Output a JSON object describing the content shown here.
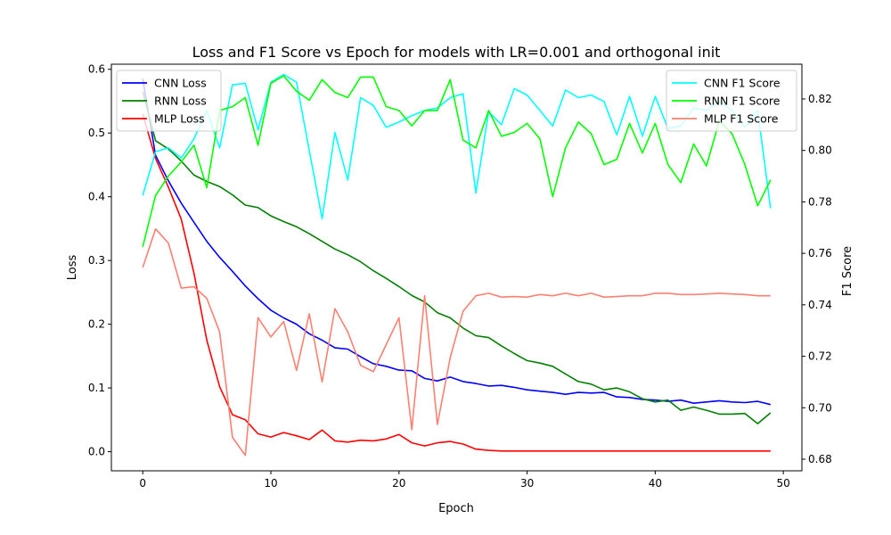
{
  "chart_data": {
    "type": "line",
    "title": "Loss and F1 Score vs Epoch for models with LR=0.001 and orthogonal init",
    "xlabel": "Epoch",
    "ylabel_left": "Loss",
    "ylabel_right": "F1 Score",
    "xlim": [
      -2.45,
      51.45
    ],
    "ylim_left": [
      -0.03,
      0.608
    ],
    "ylim_right": [
      0.6755,
      0.8335
    ],
    "x_ticks": [
      0,
      10,
      20,
      30,
      40,
      50
    ],
    "y_left_ticks": [
      0.0,
      0.1,
      0.2,
      0.3,
      0.4,
      0.5,
      0.6
    ],
    "y_right_ticks": [
      0.68,
      0.7,
      0.72,
      0.74,
      0.76,
      0.78,
      0.8,
      0.82
    ],
    "grid": false,
    "legend_left": "top-left",
    "legend_right": "top-right",
    "x": [
      0,
      1,
      2,
      3,
      4,
      5,
      6,
      7,
      8,
      9,
      10,
      11,
      12,
      13,
      14,
      15,
      16,
      17,
      18,
      19,
      20,
      21,
      22,
      23,
      24,
      25,
      26,
      27,
      28,
      29,
      30,
      31,
      32,
      33,
      34,
      35,
      36,
      37,
      38,
      39,
      40,
      41,
      42,
      43,
      44,
      45,
      46,
      47,
      48,
      49
    ],
    "loss_series": [
      {
        "name": "CNN Loss",
        "color": "#0000ff",
        "values": [
          0.585,
          0.465,
          0.425,
          0.39,
          0.36,
          0.33,
          0.305,
          0.283,
          0.26,
          0.24,
          0.222,
          0.21,
          0.2,
          0.185,
          0.175,
          0.163,
          0.161,
          0.149,
          0.138,
          0.134,
          0.128,
          0.127,
          0.115,
          0.111,
          0.117,
          0.11,
          0.107,
          0.103,
          0.104,
          0.101,
          0.097,
          0.095,
          0.093,
          0.09,
          0.093,
          0.092,
          0.093,
          0.086,
          0.085,
          0.082,
          0.081,
          0.079,
          0.081,
          0.076,
          0.078,
          0.08,
          0.078,
          0.077,
          0.079,
          0.074
        ]
      },
      {
        "name": "RNN Loss",
        "color": "#008000",
        "values": [
          0.565,
          0.488,
          0.475,
          0.456,
          0.434,
          0.424,
          0.416,
          0.403,
          0.387,
          0.383,
          0.37,
          0.361,
          0.353,
          0.342,
          0.33,
          0.318,
          0.309,
          0.298,
          0.284,
          0.272,
          0.259,
          0.245,
          0.235,
          0.218,
          0.21,
          0.194,
          0.182,
          0.179,
          0.166,
          0.154,
          0.143,
          0.139,
          0.134,
          0.122,
          0.11,
          0.106,
          0.097,
          0.1,
          0.094,
          0.083,
          0.078,
          0.081,
          0.065,
          0.07,
          0.065,
          0.059,
          0.059,
          0.06,
          0.044,
          0.061
        ]
      },
      {
        "name": "MLP Loss",
        "color": "#ff0000",
        "values": [
          0.53,
          0.46,
          0.415,
          0.365,
          0.28,
          0.175,
          0.102,
          0.058,
          0.05,
          0.028,
          0.023,
          0.03,
          0.025,
          0.019,
          0.034,
          0.017,
          0.015,
          0.018,
          0.017,
          0.02,
          0.027,
          0.014,
          0.009,
          0.014,
          0.016,
          0.012,
          0.004,
          0.002,
          0.001,
          0.001,
          0.001,
          0.001,
          0.001,
          0.001,
          0.001,
          0.001,
          0.001,
          0.001,
          0.001,
          0.001,
          0.001,
          0.001,
          0.001,
          0.001,
          0.001,
          0.001,
          0.001,
          0.001,
          0.001,
          0.001
        ]
      }
    ],
    "f1_series": [
      {
        "name": "CNN F1 Score",
        "color": "#00ffff",
        "values": [
          0.7825,
          0.7995,
          0.801,
          0.797,
          0.8045,
          0.8155,
          0.801,
          0.8255,
          0.826,
          0.808,
          0.8265,
          0.8295,
          0.8265,
          0.8,
          0.7735,
          0.807,
          0.7885,
          0.8205,
          0.8175,
          0.809,
          0.811,
          0.8135,
          0.8155,
          0.8165,
          0.8205,
          0.822,
          0.7835,
          0.815,
          0.81,
          0.824,
          0.8215,
          0.8155,
          0.8095,
          0.8235,
          0.8205,
          0.8215,
          0.819,
          0.806,
          0.821,
          0.8055,
          0.821,
          0.8085,
          0.8095,
          0.8165,
          0.8155,
          0.819,
          0.8155,
          0.809,
          0.8155,
          0.7775
        ]
      },
      {
        "name": "RNN F1 Score",
        "color": "#00ff00",
        "values": [
          0.7625,
          0.7825,
          0.79,
          0.7955,
          0.802,
          0.7855,
          0.8155,
          0.817,
          0.8205,
          0.802,
          0.826,
          0.829,
          0.823,
          0.8195,
          0.8275,
          0.8225,
          0.8205,
          0.8285,
          0.8285,
          0.817,
          0.8155,
          0.8095,
          0.8155,
          0.8155,
          0.8275,
          0.804,
          0.801,
          0.8155,
          0.8055,
          0.807,
          0.8105,
          0.8045,
          0.782,
          0.801,
          0.811,
          0.8065,
          0.7945,
          0.7965,
          0.8105,
          0.799,
          0.8105,
          0.7945,
          0.7875,
          0.8025,
          0.794,
          0.8115,
          0.8065,
          0.7945,
          0.7785,
          0.7885
        ]
      },
      {
        "name": "MLP F1 Score",
        "color": "#fa8072",
        "values": [
          0.7545,
          0.7695,
          0.764,
          0.7465,
          0.747,
          0.7425,
          0.7295,
          0.6885,
          0.6815,
          0.735,
          0.7275,
          0.7335,
          0.7145,
          0.7365,
          0.71,
          0.7385,
          0.7295,
          0.7165,
          0.714,
          0.7245,
          0.735,
          0.6915,
          0.7435,
          0.6935,
          0.7195,
          0.7375,
          0.7435,
          0.7445,
          0.743,
          0.7432,
          0.743,
          0.744,
          0.7435,
          0.7445,
          0.7435,
          0.7445,
          0.743,
          0.7432,
          0.7435,
          0.7435,
          0.7445,
          0.7445,
          0.744,
          0.744,
          0.7442,
          0.7445,
          0.7442,
          0.744,
          0.7435,
          0.7435
        ]
      }
    ]
  }
}
